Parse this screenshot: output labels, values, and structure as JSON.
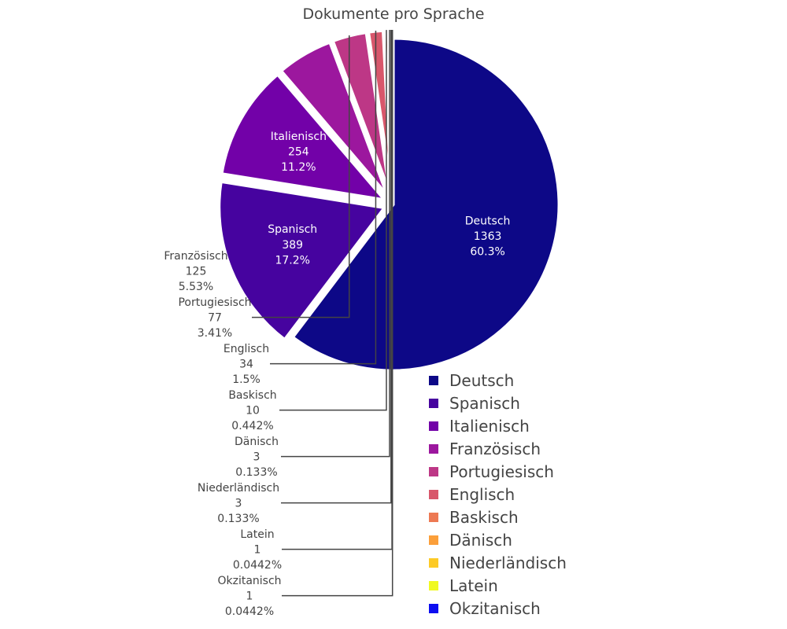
{
  "chart_data": {
    "type": "pie",
    "title": "Dokumente pro Sprache",
    "slices": [
      {
        "label": "Deutsch",
        "value": 1363,
        "percent": "60.3%",
        "color": "#0d0887"
      },
      {
        "label": "Spanisch",
        "value": 389,
        "percent": "17.2%",
        "color": "#46039f"
      },
      {
        "label": "Italienisch",
        "value": 254,
        "percent": "11.2%",
        "color": "#7201a8"
      },
      {
        "label": "Französisch",
        "value": 125,
        "percent": "5.53%",
        "color": "#9c179e"
      },
      {
        "label": "Portugiesisch",
        "value": 77,
        "percent": "3.41%",
        "color": "#bd3786"
      },
      {
        "label": "Englisch",
        "value": 34,
        "percent": "1.5%",
        "color": "#d8576b"
      },
      {
        "label": "Baskisch",
        "value": 10,
        "percent": "0.442%",
        "color": "#ed7953"
      },
      {
        "label": "Dänisch",
        "value": 3,
        "percent": "0.133%",
        "color": "#fb9f3a"
      },
      {
        "label": "Niederländisch",
        "value": 3,
        "percent": "0.133%",
        "color": "#fdca26"
      },
      {
        "label": "Latein",
        "value": 1,
        "percent": "0.0442%",
        "color": "#f0f921"
      },
      {
        "label": "Okzitanisch",
        "value": 1,
        "percent": "0.0442%",
        "color": "#0d0ef0"
      }
    ],
    "pulled_slices": [
      "Spanisch",
      "Italienisch",
      "Französisch",
      "Portugiesisch",
      "Englisch",
      "Baskisch",
      "Dänisch",
      "Niederländisch",
      "Latein",
      "Okzitanisch"
    ],
    "start_angle_deg": 90,
    "direction": "clockwise",
    "legend_position": "bottom-right"
  }
}
